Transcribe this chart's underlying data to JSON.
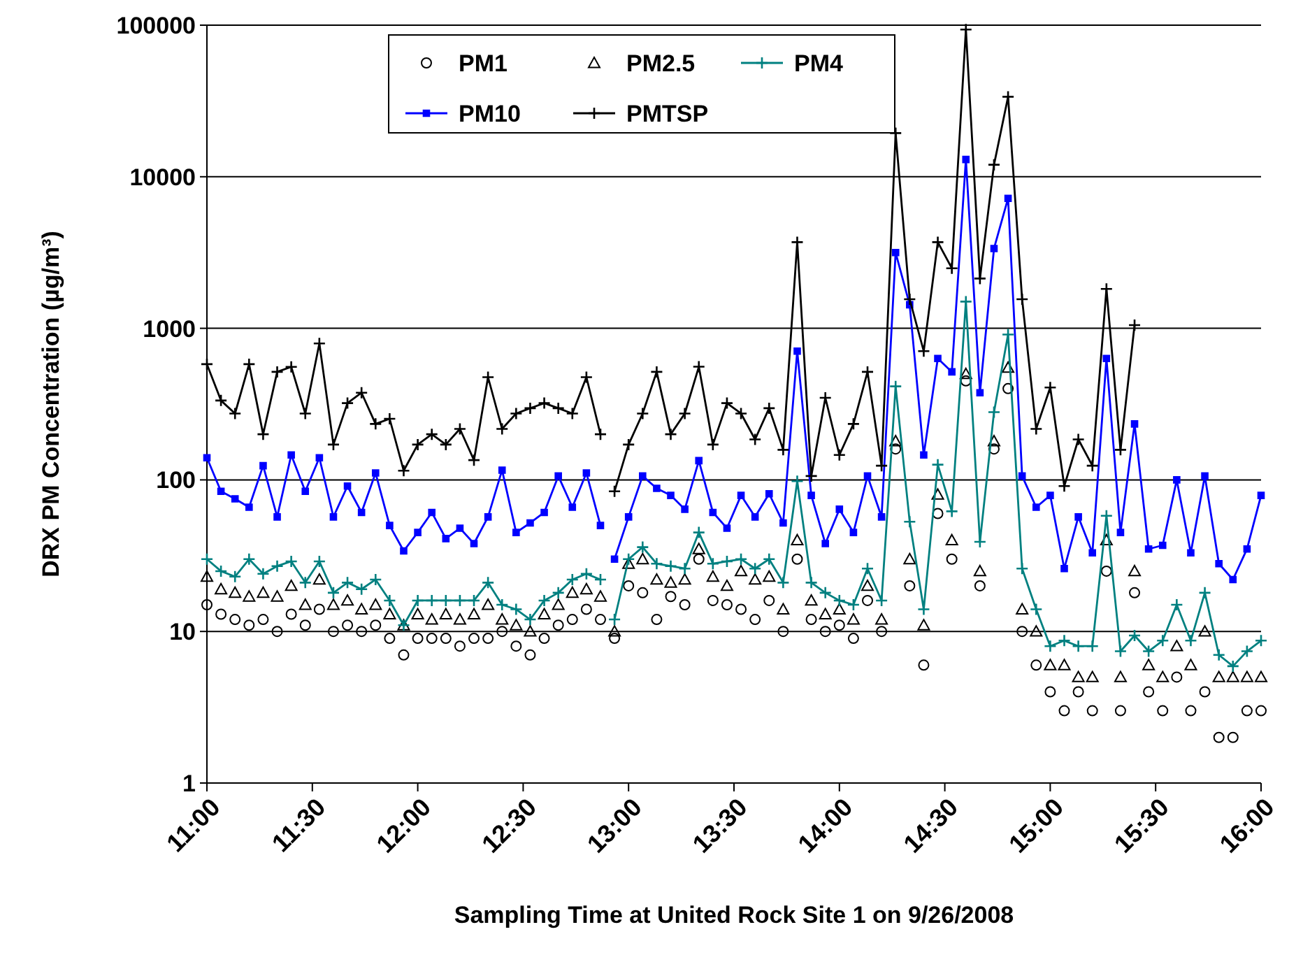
{
  "chart_data": {
    "type": "line",
    "xlabel": "Sampling Time at United Rock Site 1 on 9/26/2008",
    "ylabel": "DRX PM Concentration (µg/m³)",
    "log": "y",
    "grid": "y",
    "legend": "top",
    "ylim": [
      1,
      100000
    ],
    "yticks": [
      1,
      10,
      100,
      1000,
      10000,
      100000
    ],
    "xlim": [
      "2008-09-26T11:00",
      "2008-09-26T16:00"
    ],
    "xticks": [
      {
        "value": "2008-09-26T11:00",
        "label": "11:00"
      },
      {
        "value": "2008-09-26T11:30",
        "label": "11:30"
      },
      {
        "value": "2008-09-26T12:00",
        "label": "12:00"
      },
      {
        "value": "2008-09-26T12:30",
        "label": "12:30"
      },
      {
        "value": "2008-09-26T13:00",
        "label": "13:00"
      },
      {
        "value": "2008-09-26T13:30",
        "label": "13:30"
      },
      {
        "value": "2008-09-26T14:00",
        "label": "14:00"
      },
      {
        "value": "2008-09-26T14:30",
        "label": "14:30"
      },
      {
        "value": "2008-09-26T15:00",
        "label": "15:00"
      },
      {
        "value": "2008-09-26T15:30",
        "label": "15:30"
      },
      {
        "value": "2008-09-26T16:00",
        "label": "16:00"
      }
    ],
    "x": [
      "2008-09-26T11:00",
      "2008-09-26T11:04",
      "2008-09-26T11:08",
      "2008-09-26T11:12",
      "2008-09-26T11:16",
      "2008-09-26T11:20",
      "2008-09-26T11:24",
      "2008-09-26T11:28",
      "2008-09-26T11:32",
      "2008-09-26T11:36",
      "2008-09-26T11:40",
      "2008-09-26T11:44",
      "2008-09-26T11:48",
      "2008-09-26T11:52",
      "2008-09-26T11:56",
      "2008-09-26T12:00",
      "2008-09-26T12:04",
      "2008-09-26T12:08",
      "2008-09-26T12:12",
      "2008-09-26T12:16",
      "2008-09-26T12:20",
      "2008-09-26T12:24",
      "2008-09-26T12:28",
      "2008-09-26T12:32",
      "2008-09-26T12:36",
      "2008-09-26T12:40",
      "2008-09-26T12:44",
      "2008-09-26T12:48",
      "2008-09-26T12:52",
      "2008-09-26T12:54",
      "2008-09-26T12:56",
      "2008-09-26T13:00",
      "2008-09-26T13:04",
      "2008-09-26T13:08",
      "2008-09-26T13:12",
      "2008-09-26T13:16",
      "2008-09-26T13:20",
      "2008-09-26T13:24",
      "2008-09-26T13:28",
      "2008-09-26T13:32",
      "2008-09-26T13:36",
      "2008-09-26T13:40",
      "2008-09-26T13:44",
      "2008-09-26T13:48",
      "2008-09-26T13:52",
      "2008-09-26T13:56",
      "2008-09-26T14:00",
      "2008-09-26T14:04",
      "2008-09-26T14:08",
      "2008-09-26T14:12",
      "2008-09-26T14:16",
      "2008-09-26T14:20",
      "2008-09-26T14:24",
      "2008-09-26T14:28",
      "2008-09-26T14:32",
      "2008-09-26T14:36",
      "2008-09-26T14:40",
      "2008-09-26T14:44",
      "2008-09-26T14:48",
      "2008-09-26T14:52",
      "2008-09-26T14:56",
      "2008-09-26T15:00",
      "2008-09-26T15:04",
      "2008-09-26T15:08",
      "2008-09-26T15:12",
      "2008-09-26T15:16",
      "2008-09-26T15:20",
      "2008-09-26T15:24",
      "2008-09-26T15:28",
      "2008-09-26T15:32",
      "2008-09-26T15:36",
      "2008-09-26T15:40",
      "2008-09-26T15:44",
      "2008-09-26T15:48",
      "2008-09-26T15:52",
      "2008-09-26T15:56",
      "2008-09-26T16:00"
    ],
    "series": [
      {
        "name": "PM1",
        "type": "scatter",
        "marker": "circle",
        "color": "#000000",
        "values": [
          15,
          13,
          12,
          11,
          12,
          10,
          13,
          11,
          14,
          10,
          11,
          10,
          11,
          9,
          7,
          9,
          9,
          9,
          8,
          9,
          9,
          10,
          8,
          7,
          9,
          11,
          12,
          14,
          12,
          null,
          9,
          20,
          18,
          12,
          17,
          15,
          30,
          16,
          15,
          14,
          12,
          16,
          10,
          30,
          12,
          10,
          11,
          9,
          16,
          10,
          160,
          20,
          6,
          60,
          30,
          450,
          20,
          160,
          400,
          10,
          6,
          4,
          3,
          4,
          3,
          25,
          3,
          18,
          4,
          3,
          5,
          3,
          4,
          2,
          2,
          3,
          3
        ]
      },
      {
        "name": "PM2.5",
        "type": "scatter",
        "marker": "triangle",
        "color": "#000000",
        "values": [
          23,
          19,
          18,
          17,
          18,
          17,
          20,
          15,
          22,
          15,
          16,
          14,
          15,
          13,
          11,
          13,
          12,
          13,
          12,
          13,
          15,
          12,
          11,
          10,
          13,
          15,
          18,
          19,
          17,
          null,
          10,
          28,
          30,
          22,
          21,
          22,
          35,
          23,
          20,
          25,
          22,
          23,
          14,
          40,
          16,
          13,
          14,
          12,
          20,
          12,
          180,
          30,
          11,
          80,
          40,
          500,
          25,
          180,
          550,
          14,
          10,
          6,
          6,
          5,
          5,
          40,
          5,
          25,
          6,
          5,
          8,
          6,
          10,
          5,
          5,
          5,
          5
        ]
      },
      {
        "name": "PM4",
        "marker": "cross",
        "color": "#008080",
        "values": [
          30,
          25,
          23,
          30,
          24,
          27,
          29,
          21,
          29,
          18,
          21,
          19,
          22,
          16,
          11,
          16,
          16,
          16,
          16,
          16,
          21,
          15,
          14,
          12,
          16,
          18,
          22,
          24,
          22,
          null,
          12,
          30,
          36,
          28,
          27,
          26,
          45,
          28,
          29,
          30,
          26,
          30,
          21,
          98,
          21,
          18,
          16,
          15,
          26,
          16,
          414,
          53,
          14,
          126,
          62,
          1500,
          39,
          280,
          910,
          26,
          14,
          8,
          8.7,
          8,
          8,
          58,
          7.4,
          9.4,
          7.4,
          8.7,
          15,
          8.7,
          18,
          7,
          5.9,
          7.4,
          8.7
        ]
      },
      {
        "name": "PM10",
        "marker": "square",
        "color": "#0000ff",
        "values": [
          140,
          84,
          75,
          66,
          124,
          57,
          146,
          84,
          140,
          57,
          91,
          61,
          111,
          50,
          34,
          45,
          61,
          41,
          48,
          38,
          57,
          116,
          45,
          52,
          61,
          106,
          66,
          111,
          50,
          null,
          30,
          57,
          106,
          88,
          79,
          64,
          134,
          61,
          48,
          79,
          57,
          81,
          52,
          707,
          79,
          38,
          64,
          45,
          106,
          57,
          3160,
          1430,
          146,
          632,
          516,
          13000,
          376,
          3360,
          7200,
          106,
          66,
          79,
          26,
          57,
          33,
          632,
          45,
          234,
          35,
          37,
          100,
          33,
          106,
          28,
          22,
          35,
          79
        ]
      },
      {
        "name": "PMTSP",
        "marker": "cross",
        "color": "#000000",
        "values": [
          580,
          334,
          274,
          580,
          200,
          516,
          557,
          274,
          795,
          171,
          321,
          376,
          234,
          253,
          115,
          171,
          200,
          171,
          217,
          135,
          476,
          217,
          274,
          297,
          321,
          297,
          274,
          476,
          200,
          null,
          84,
          171,
          274,
          516,
          200,
          274,
          558,
          171,
          321,
          274,
          185,
          297,
          158,
          3700,
          106,
          348,
          146,
          234,
          516,
          124,
          19400,
          1555,
          707,
          3700,
          2490,
          93600,
          2130,
          12000,
          33700,
          1555,
          217,
          407,
          91,
          185,
          124,
          1820,
          158,
          1050,
          null,
          null,
          null,
          null,
          null,
          null,
          null,
          null,
          null
        ]
      }
    ]
  }
}
